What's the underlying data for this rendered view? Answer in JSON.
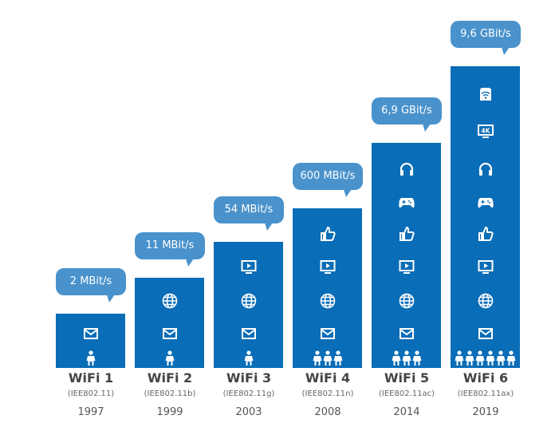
{
  "colors": {
    "bar": "#0a6db7",
    "bubble": "#4a92cb",
    "icon": "#ffffff"
  },
  "chart_data": {
    "type": "bar",
    "categories": [
      "WiFi 1",
      "WiFi 2",
      "WiFi 3",
      "WiFi 4",
      "WiFi 5",
      "WiFi 6"
    ],
    "standards": [
      "(IEE802.11)",
      "(IEE802.11b)",
      "(IEE802.11g)",
      "(IEE802.11n)",
      "(IEE802.11ac)",
      "(IEE802.11ax)"
    ],
    "years": [
      "1997",
      "1999",
      "2003",
      "2008",
      "2014",
      "2019"
    ],
    "speed_labels": [
      "2 MBit/s",
      "11 MBit/s",
      "54 MBit/s",
      "600 MBit/s",
      "6,9 GBit/s",
      "9,6 GBit/s"
    ],
    "values_mbit": [
      2,
      11,
      54,
      600,
      6900,
      9600
    ],
    "people_icons": [
      1,
      1,
      1,
      3,
      3,
      6
    ],
    "use_icons": [
      [
        "mail-icon"
      ],
      [
        "mail-icon",
        "globe-icon"
      ],
      [
        "mail-icon",
        "globe-icon",
        "play-icon"
      ],
      [
        "mail-icon",
        "globe-icon",
        "play-icon",
        "thumbs-up-icon"
      ],
      [
        "mail-icon",
        "globe-icon",
        "play-icon",
        "thumbs-up-icon",
        "gamepad-icon",
        "headphones-icon"
      ],
      [
        "mail-icon",
        "globe-icon",
        "play-icon",
        "thumbs-up-icon",
        "gamepad-icon",
        "headphones-icon",
        "tv-4k-icon",
        "wifi-router-icon"
      ]
    ],
    "four_k_text": "4K"
  }
}
